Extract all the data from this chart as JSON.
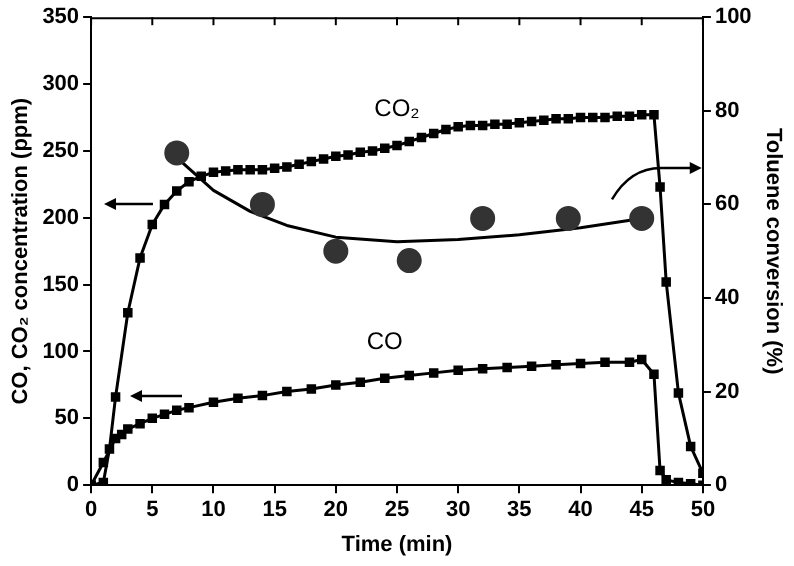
{
  "chart_data": {
    "type": "scatter",
    "xlabel": "Time (min)",
    "ylabel": "CO, CO₂ concentration (ppm)",
    "y2label": "Toluene conversion (%)",
    "xlim": [
      0,
      50
    ],
    "xticks": [
      0,
      5,
      10,
      15,
      20,
      25,
      30,
      35,
      40,
      45,
      50
    ],
    "ylim": [
      0,
      350
    ],
    "yticks": [
      0,
      50,
      100,
      150,
      200,
      250,
      300,
      350
    ],
    "y2lim": [
      0,
      100
    ],
    "y2ticks": [
      0,
      20,
      40,
      60,
      80,
      100
    ],
    "grid": false,
    "legend": false,
    "series": [
      {
        "name": "CO₂",
        "type": "line",
        "marker": "square",
        "color": "#000000",
        "x": [
          0,
          1,
          1.5,
          2,
          3,
          4,
          5,
          6,
          7,
          8,
          9,
          10,
          11,
          12,
          13,
          14,
          15,
          16,
          17,
          18,
          19,
          20,
          21,
          22,
          23,
          24,
          25,
          26,
          27,
          28,
          29,
          30,
          31,
          32,
          33,
          34,
          35,
          36,
          37,
          38,
          39,
          40,
          41,
          42,
          43,
          44,
          45,
          46,
          46.5,
          47,
          48,
          49,
          50
        ],
        "values": [
          0,
          2,
          27,
          66,
          129,
          170,
          195,
          210,
          220,
          227,
          231,
          234,
          235,
          236,
          236,
          236,
          237,
          238,
          240,
          242,
          244,
          246,
          247,
          249,
          250,
          252,
          254,
          257,
          260,
          263,
          266,
          268,
          269,
          269,
          270,
          270,
          271,
          272,
          273,
          274,
          274,
          275,
          275,
          275,
          276,
          276,
          277,
          277,
          223,
          152,
          69,
          29,
          9
        ]
      },
      {
        "name": "CO",
        "type": "line",
        "marker": "square",
        "color": "#000000",
        "x": [
          0,
          1,
          2,
          2.5,
          3,
          4,
          5,
          6,
          7,
          8,
          10,
          12,
          14,
          16,
          18,
          20,
          22,
          24,
          26,
          28,
          30,
          32,
          34,
          36,
          38,
          40,
          42,
          44,
          45,
          46,
          46.5,
          47,
          48,
          49,
          50
        ],
        "values": [
          0,
          17,
          35,
          38,
          42,
          46,
          50,
          53,
          56,
          58,
          62,
          65,
          67,
          70,
          72,
          75,
          77,
          80,
          82,
          84,
          86,
          87,
          88,
          89,
          90,
          91,
          92,
          92,
          94,
          83,
          11,
          4,
          2,
          1,
          0
        ]
      },
      {
        "axis": "y2",
        "marker": "circle",
        "color": "#333333",
        "x": [
          7,
          14,
          20,
          26,
          32,
          39,
          45
        ],
        "values": [
          71,
          60,
          50,
          48,
          57,
          57,
          57
        ]
      },
      {
        "type": "line",
        "axis": "y2",
        "marker": "none",
        "color": "#000000",
        "x": [
          7,
          10,
          13,
          16,
          20,
          25,
          30,
          35,
          40,
          45
        ],
        "values": [
          70,
          63,
          58.5,
          55.5,
          53,
          52,
          52.5,
          53.5,
          55,
          57
        ]
      }
    ]
  }
}
